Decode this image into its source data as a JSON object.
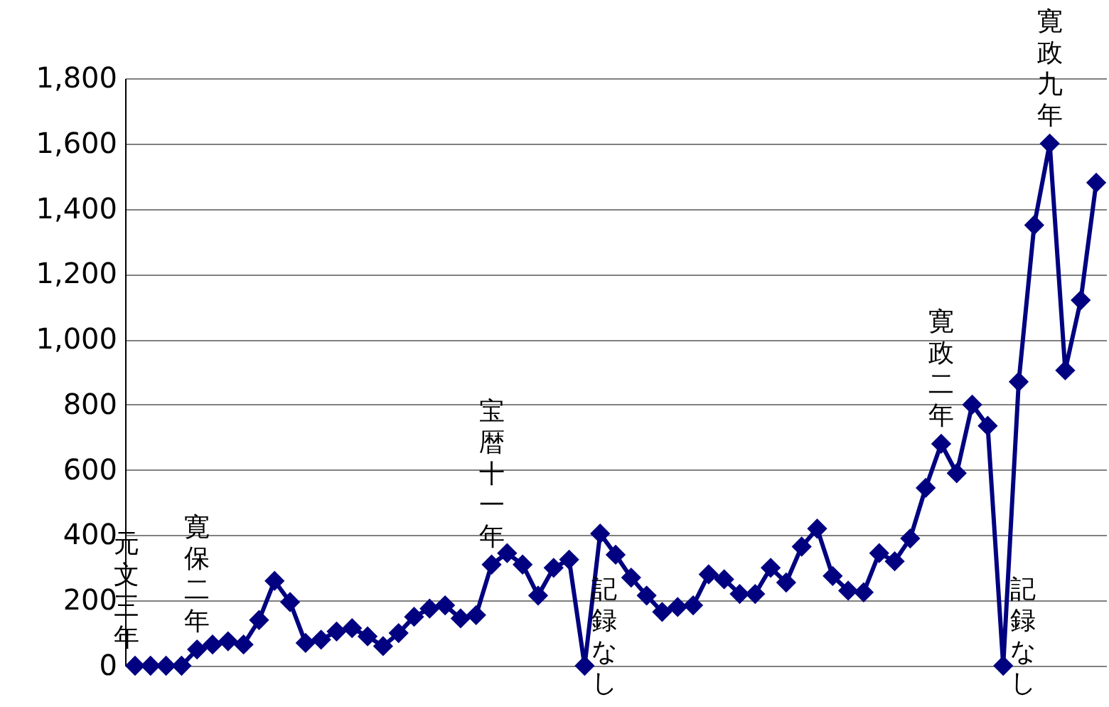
{
  "chart_data": {
    "type": "line",
    "categories": [
      null,
      null,
      null,
      null,
      null,
      null,
      null,
      null,
      null,
      null,
      null,
      null,
      null,
      null,
      null,
      null,
      null,
      null,
      null,
      null,
      null,
      null,
      null,
      null,
      null,
      null,
      null,
      null,
      null,
      null,
      null,
      null,
      null,
      null,
      null,
      null,
      null,
      null,
      null,
      null,
      null,
      null,
      null,
      null,
      null,
      null,
      null,
      null,
      null,
      null,
      null,
      null,
      null,
      null,
      null,
      null,
      null,
      null,
      null,
      null,
      null,
      null,
      null
    ],
    "series": [
      {
        "color": "#000080",
        "values": [
          0,
          0,
          0,
          0,
          50,
          65,
          75,
          65,
          140,
          260,
          195,
          70,
          80,
          105,
          115,
          90,
          60,
          100,
          150,
          175,
          185,
          145,
          155,
          310,
          345,
          310,
          215,
          300,
          325,
          0,
          405,
          340,
          270,
          215,
          165,
          180,
          185,
          280,
          265,
          220,
          220,
          300,
          255,
          365,
          420,
          275,
          230,
          225,
          345,
          320,
          390,
          545,
          680,
          590,
          800,
          735,
          0,
          870,
          1350,
          1600,
          905,
          1120,
          1480
        ],
        "value_labels": [
          "元文三年",
          null,
          null,
          null,
          "寛保二年",
          null,
          null,
          null,
          null,
          null,
          null,
          null,
          null,
          null,
          null,
          null,
          null,
          null,
          null,
          null,
          null,
          null,
          null,
          "宝暦十一年",
          null,
          null,
          null,
          null,
          null,
          "記録なし",
          null,
          null,
          null,
          null,
          null,
          null,
          null,
          null,
          null,
          null,
          null,
          null,
          null,
          null,
          null,
          null,
          null,
          null,
          null,
          null,
          null,
          null,
          "寛政二年",
          null,
          null,
          null,
          "記録なし",
          null,
          null,
          "寛政九年",
          null,
          null,
          null
        ]
      }
    ],
    "ylim": [
      0,
      1800
    ],
    "yticks": [
      0,
      200,
      400,
      600,
      800,
      {
        "value": 1000,
        "label": "1,000"
      },
      {
        "value": 1200,
        "label": "1,200"
      },
      {
        "value": 1400,
        "label": "1,400"
      },
      {
        "value": 1600,
        "label": "1,600"
      },
      {
        "value": 1800,
        "label": "1,800"
      }
    ],
    "grid": "y",
    "tick_labels": "y",
    "marker": "diamond",
    "line_style": "solid"
  }
}
